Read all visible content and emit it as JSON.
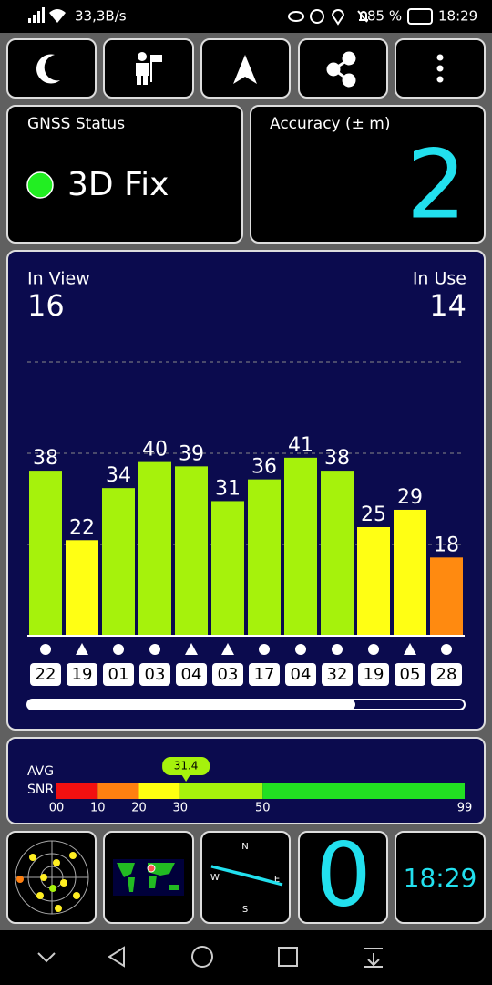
{
  "status_bar": {
    "speed": "33,3B/s",
    "battery": "85 %",
    "time": "18:29"
  },
  "gnss": {
    "label": "GNSS Status",
    "value": "3D Fix"
  },
  "accuracy": {
    "label": "Accuracy (± m)",
    "value": "2"
  },
  "satellites": {
    "in_view_label": "In View",
    "in_view": "16",
    "in_use_label": "In Use",
    "in_use": "14",
    "bars": [
      {
        "snr": 38,
        "id": "22",
        "marker": "circle",
        "color": "#a6f20c"
      },
      {
        "snr": 22,
        "id": "19",
        "marker": "triangle",
        "color": "#ffff14"
      },
      {
        "snr": 34,
        "id": "01",
        "marker": "circle",
        "color": "#a6f20c"
      },
      {
        "snr": 40,
        "id": "03",
        "marker": "circle",
        "color": "#a6f20c"
      },
      {
        "snr": 39,
        "id": "04",
        "marker": "triangle",
        "color": "#a6f20c"
      },
      {
        "snr": 31,
        "id": "03",
        "marker": "triangle",
        "color": "#a6f20c"
      },
      {
        "snr": 36,
        "id": "17",
        "marker": "circle",
        "color": "#a6f20c"
      },
      {
        "snr": 41,
        "id": "04",
        "marker": "circle",
        "color": "#a6f20c"
      },
      {
        "snr": 38,
        "id": "32",
        "marker": "circle",
        "color": "#a6f20c"
      },
      {
        "snr": 25,
        "id": "19",
        "marker": "circle",
        "color": "#ffff14"
      },
      {
        "snr": 29,
        "id": "05",
        "marker": "triangle",
        "color": "#ffff14"
      },
      {
        "snr": 18,
        "id": "28",
        "marker": "circle",
        "color": "#ff8a10"
      }
    ]
  },
  "snr": {
    "label_top": "AVG",
    "label_bottom": "SNR",
    "average": 31.4,
    "scale": [
      {
        "value": 0,
        "label": "00"
      },
      10,
      20,
      30,
      50,
      99
    ],
    "colors": [
      "#f21010",
      "#ff8010",
      "#ffff10",
      "#a6f20c",
      "#22e022"
    ]
  },
  "tiles": {
    "compass": {
      "n": "N",
      "e": "E",
      "s": "S",
      "w": "W"
    },
    "count": "0",
    "clock": "18:29"
  }
}
